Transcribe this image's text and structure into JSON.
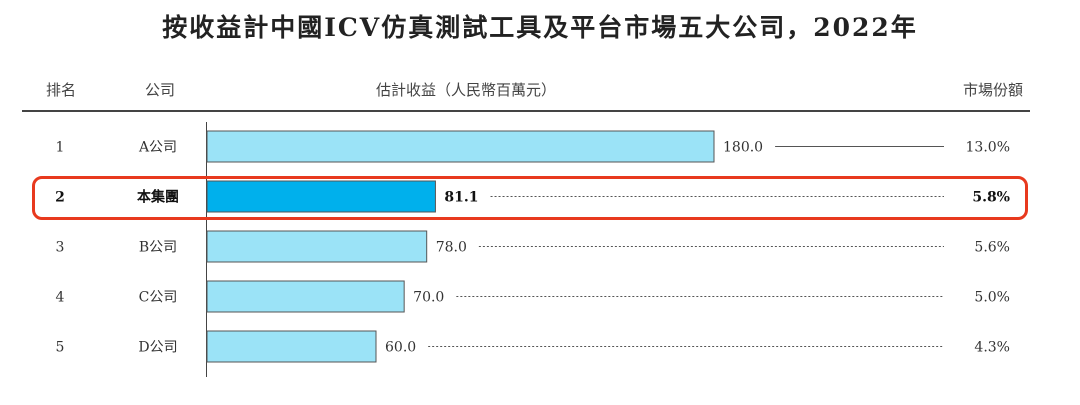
{
  "title": "按收益計中國ICV仿真測試工具及平台市場五大公司，2022年",
  "headers": {
    "rank": "排名",
    "company": "公司",
    "revenue": "估計收益（人民幣百萬元）",
    "share": "市場份額"
  },
  "chart_data": {
    "type": "bar",
    "orientation": "horizontal",
    "title": "按收益計中國ICV仿真測試工具及平台市場五大公司，2022年",
    "xlabel": "估計收益（人民幣百萬元）",
    "ylabel": "",
    "xlim": [
      0,
      180
    ],
    "ranks": [
      "1",
      "2",
      "3",
      "4",
      "5"
    ],
    "categories": [
      "A公司",
      "本集團",
      "B公司",
      "C公司",
      "D公司"
    ],
    "values": [
      180.0,
      81.1,
      78.0,
      70.0,
      60.0
    ],
    "value_labels": [
      "180.0",
      "81.1",
      "78.0",
      "70.0",
      "60.0"
    ],
    "market_share": [
      "13.0%",
      "5.8%",
      "5.6%",
      "5.0%",
      "4.3%"
    ],
    "highlighted_index": 1,
    "colors": {
      "bar": "#9be3f7",
      "bar_highlight": "#00b0ec",
      "bar_border": "#555555",
      "highlight_box": "#e8391e"
    }
  }
}
